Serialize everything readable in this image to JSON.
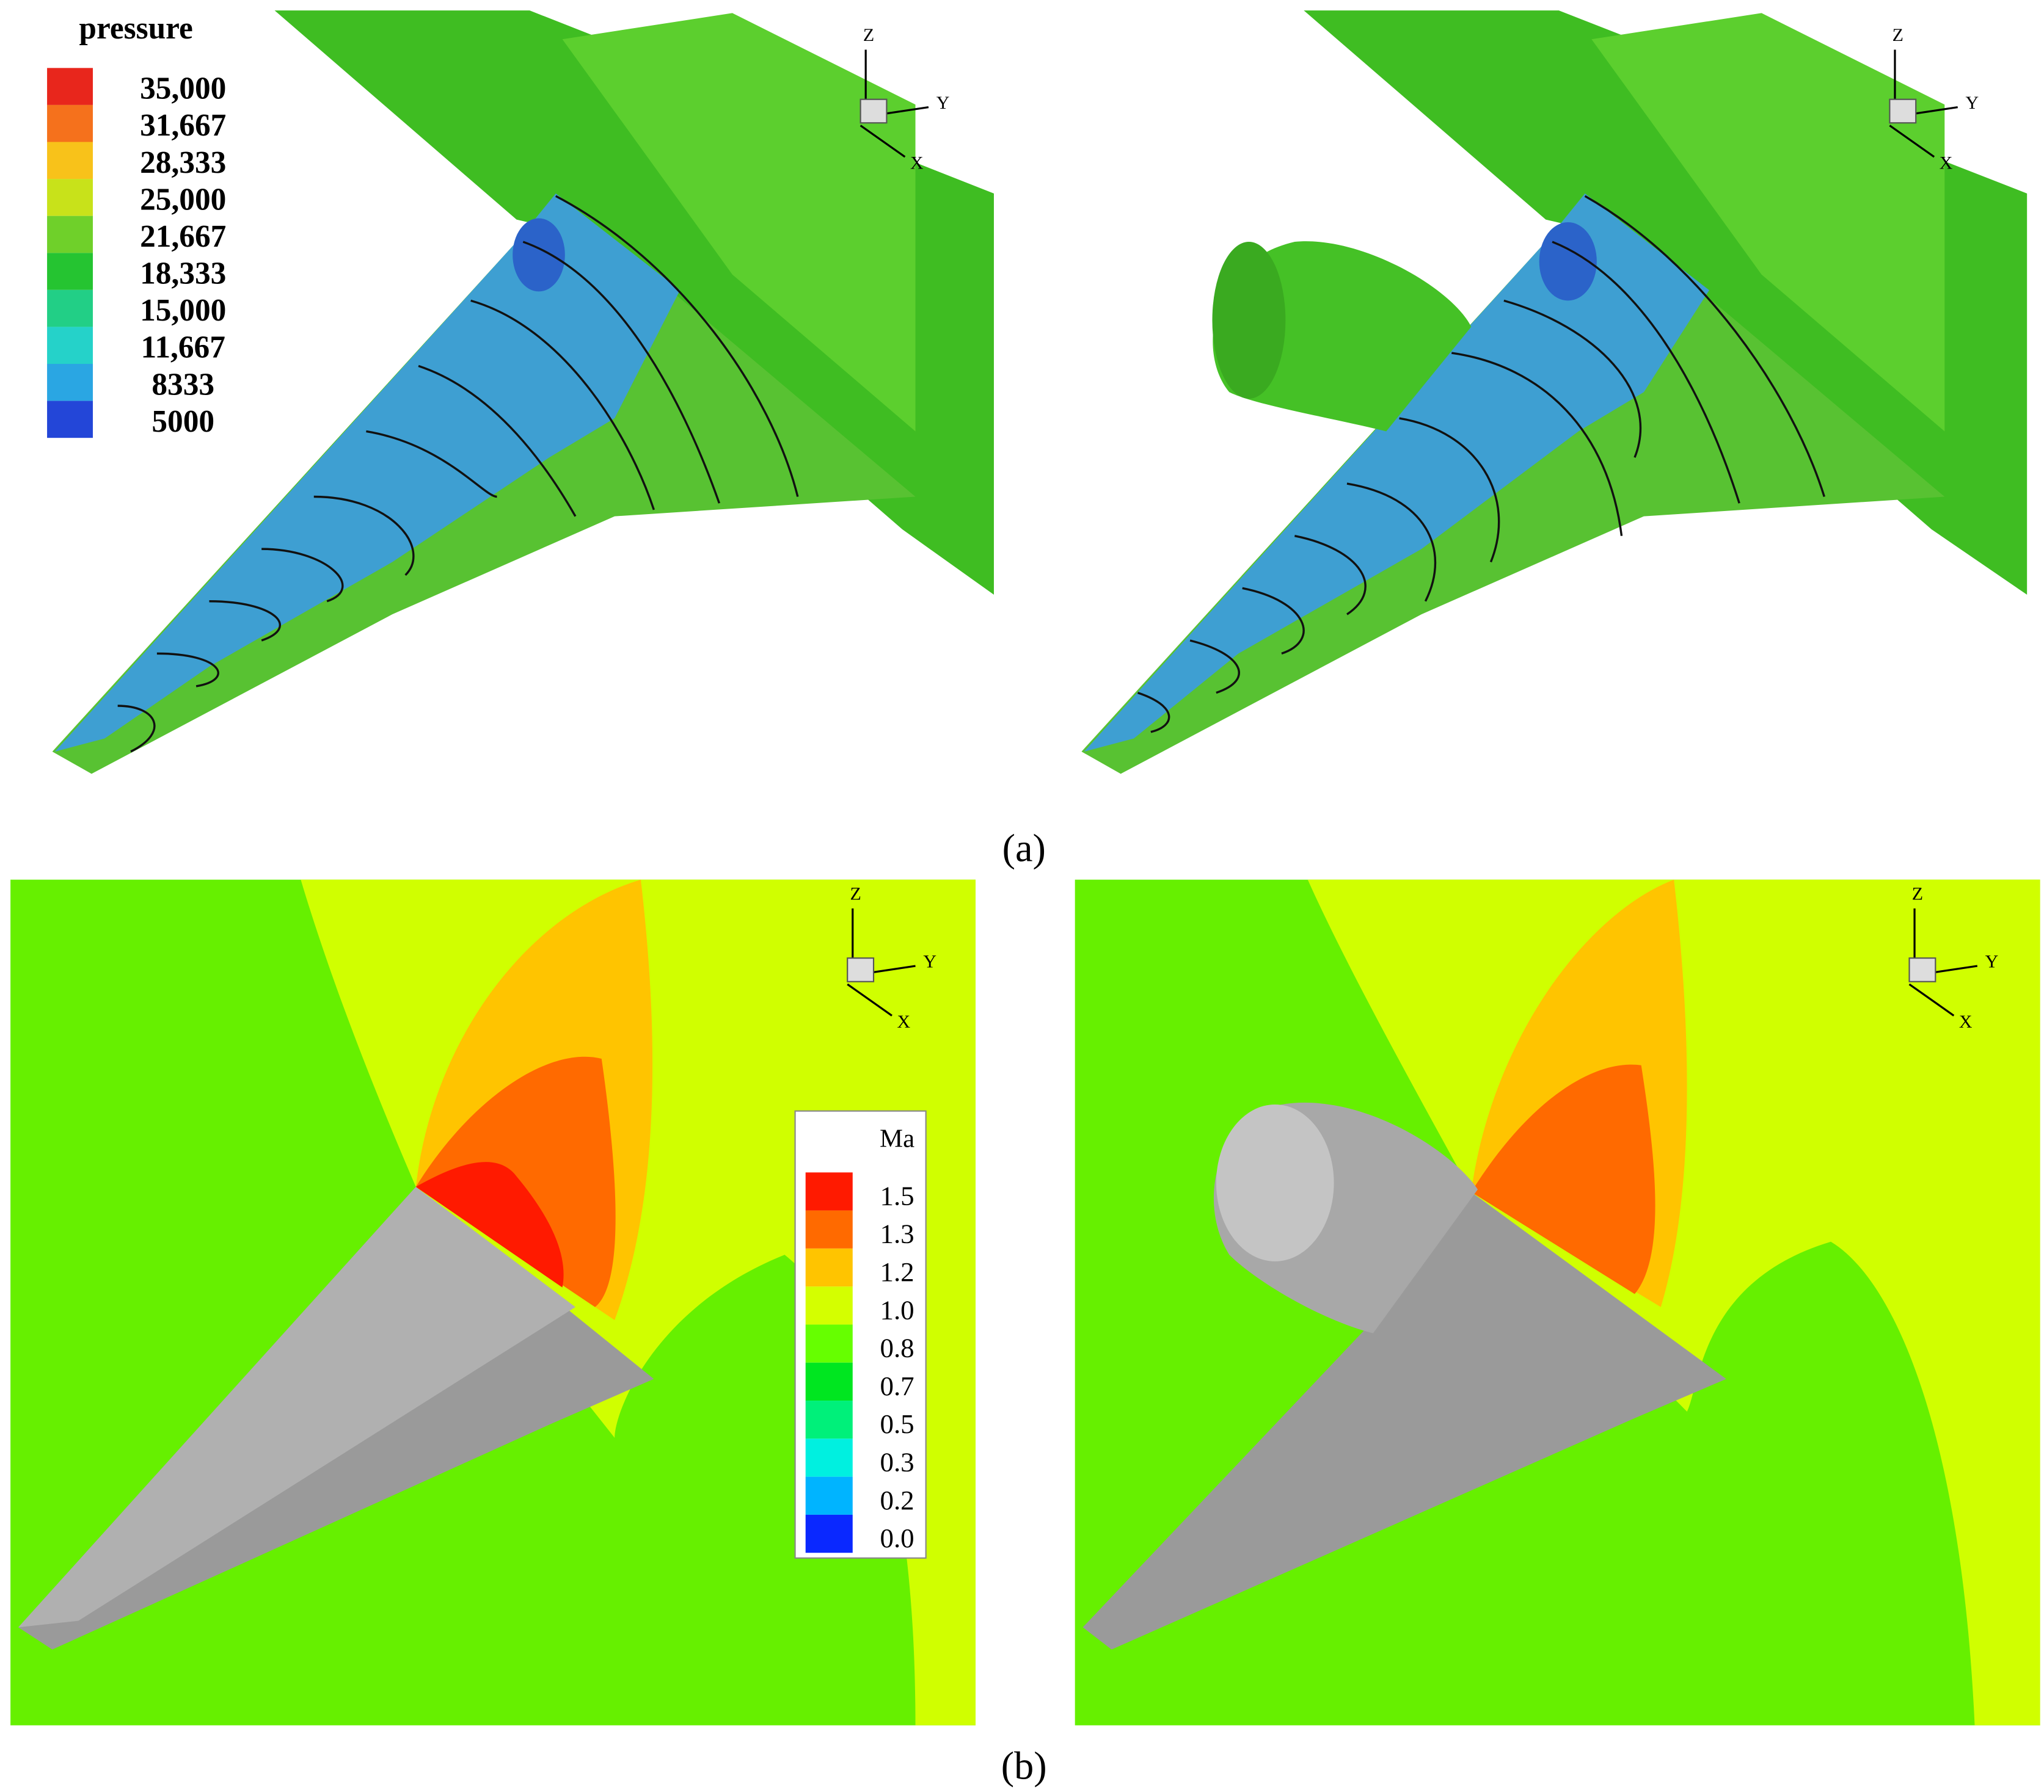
{
  "axis_triad": {
    "z": "Z",
    "y": "Y",
    "x": "X"
  },
  "panel_a": {
    "caption": "(a)",
    "legend": {
      "title": "pressure",
      "levels": [
        {
          "label": "35,000",
          "color": "#e8261c"
        },
        {
          "label": "31,667",
          "color": "#f5711c"
        },
        {
          "label": "28,333",
          "color": "#f8c21a"
        },
        {
          "label": "25,000",
          "color": "#c8e21a"
        },
        {
          "label": "21,667",
          "color": "#6fd02a"
        },
        {
          "label": "18,333",
          "color": "#25c431"
        },
        {
          "label": "15,000",
          "color": "#22cf86"
        },
        {
          "label": "11,667",
          "color": "#25d2c9"
        },
        {
          "label": "8333",
          "color": "#2aa6e3"
        },
        {
          "label": "5000",
          "color": "#2346d8"
        }
      ]
    }
  },
  "panel_b": {
    "caption": "(b)",
    "legend": {
      "title": "Ma",
      "levels": [
        {
          "label": "1.5",
          "color": "#ff1a00"
        },
        {
          "label": "1.3",
          "color": "#ff6a00"
        },
        {
          "label": "1.2",
          "color": "#ffc400"
        },
        {
          "label": "1.0",
          "color": "#d4ff00"
        },
        {
          "label": "0.8",
          "color": "#66ff00"
        },
        {
          "label": "0.7",
          "color": "#00e620"
        },
        {
          "label": "0.5",
          "color": "#00f07a"
        },
        {
          "label": "0.3",
          "color": "#00f0e0"
        },
        {
          "label": "0.2",
          "color": "#00b4ff"
        },
        {
          "label": "0.0",
          "color": "#0a28ff"
        }
      ]
    }
  }
}
